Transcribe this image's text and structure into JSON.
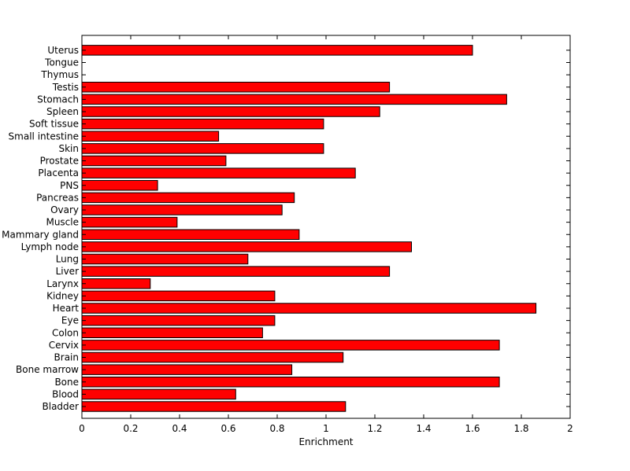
{
  "chart_data": {
    "type": "bar",
    "orientation": "horizontal",
    "categories": [
      "Bladder",
      "Blood",
      "Bone",
      "Bone marrow",
      "Brain",
      "Cervix",
      "Colon",
      "Eye",
      "Heart",
      "Kidney",
      "Larynx",
      "Liver",
      "Lung",
      "Lymph node",
      "Mammary gland",
      "Muscle",
      "Ovary",
      "Pancreas",
      "PNS",
      "Placenta",
      "Prostate",
      "Skin",
      "Small intestine",
      "Soft tissue",
      "Spleen",
      "Stomach",
      "Testis",
      "Thymus",
      "Tongue",
      "Uterus"
    ],
    "values": [
      1.08,
      0.63,
      1.71,
      0.86,
      1.07,
      1.71,
      0.74,
      0.79,
      1.86,
      0.79,
      0.28,
      1.26,
      0.68,
      1.35,
      0.89,
      0.39,
      0.82,
      0.87,
      0.31,
      1.12,
      0.59,
      0.99,
      0.56,
      0.99,
      1.22,
      1.74,
      1.26,
      0,
      0,
      1.6
    ],
    "title": "",
    "xlabel": "Enrichment",
    "ylabel": "",
    "xlim": [
      0,
      2
    ],
    "xticks": [
      0,
      0.2,
      0.4,
      0.6,
      0.8,
      1,
      1.2,
      1.4,
      1.6,
      1.8,
      2
    ],
    "xtick_labels": [
      "0",
      "0.2",
      "0.4",
      "0.6",
      "0.8",
      "1",
      "1.2",
      "1.4",
      "1.6",
      "1.8",
      "2"
    ],
    "grid": false,
    "legend": "none",
    "bar_color": "#ff0000",
    "edge_color": "#000000"
  }
}
